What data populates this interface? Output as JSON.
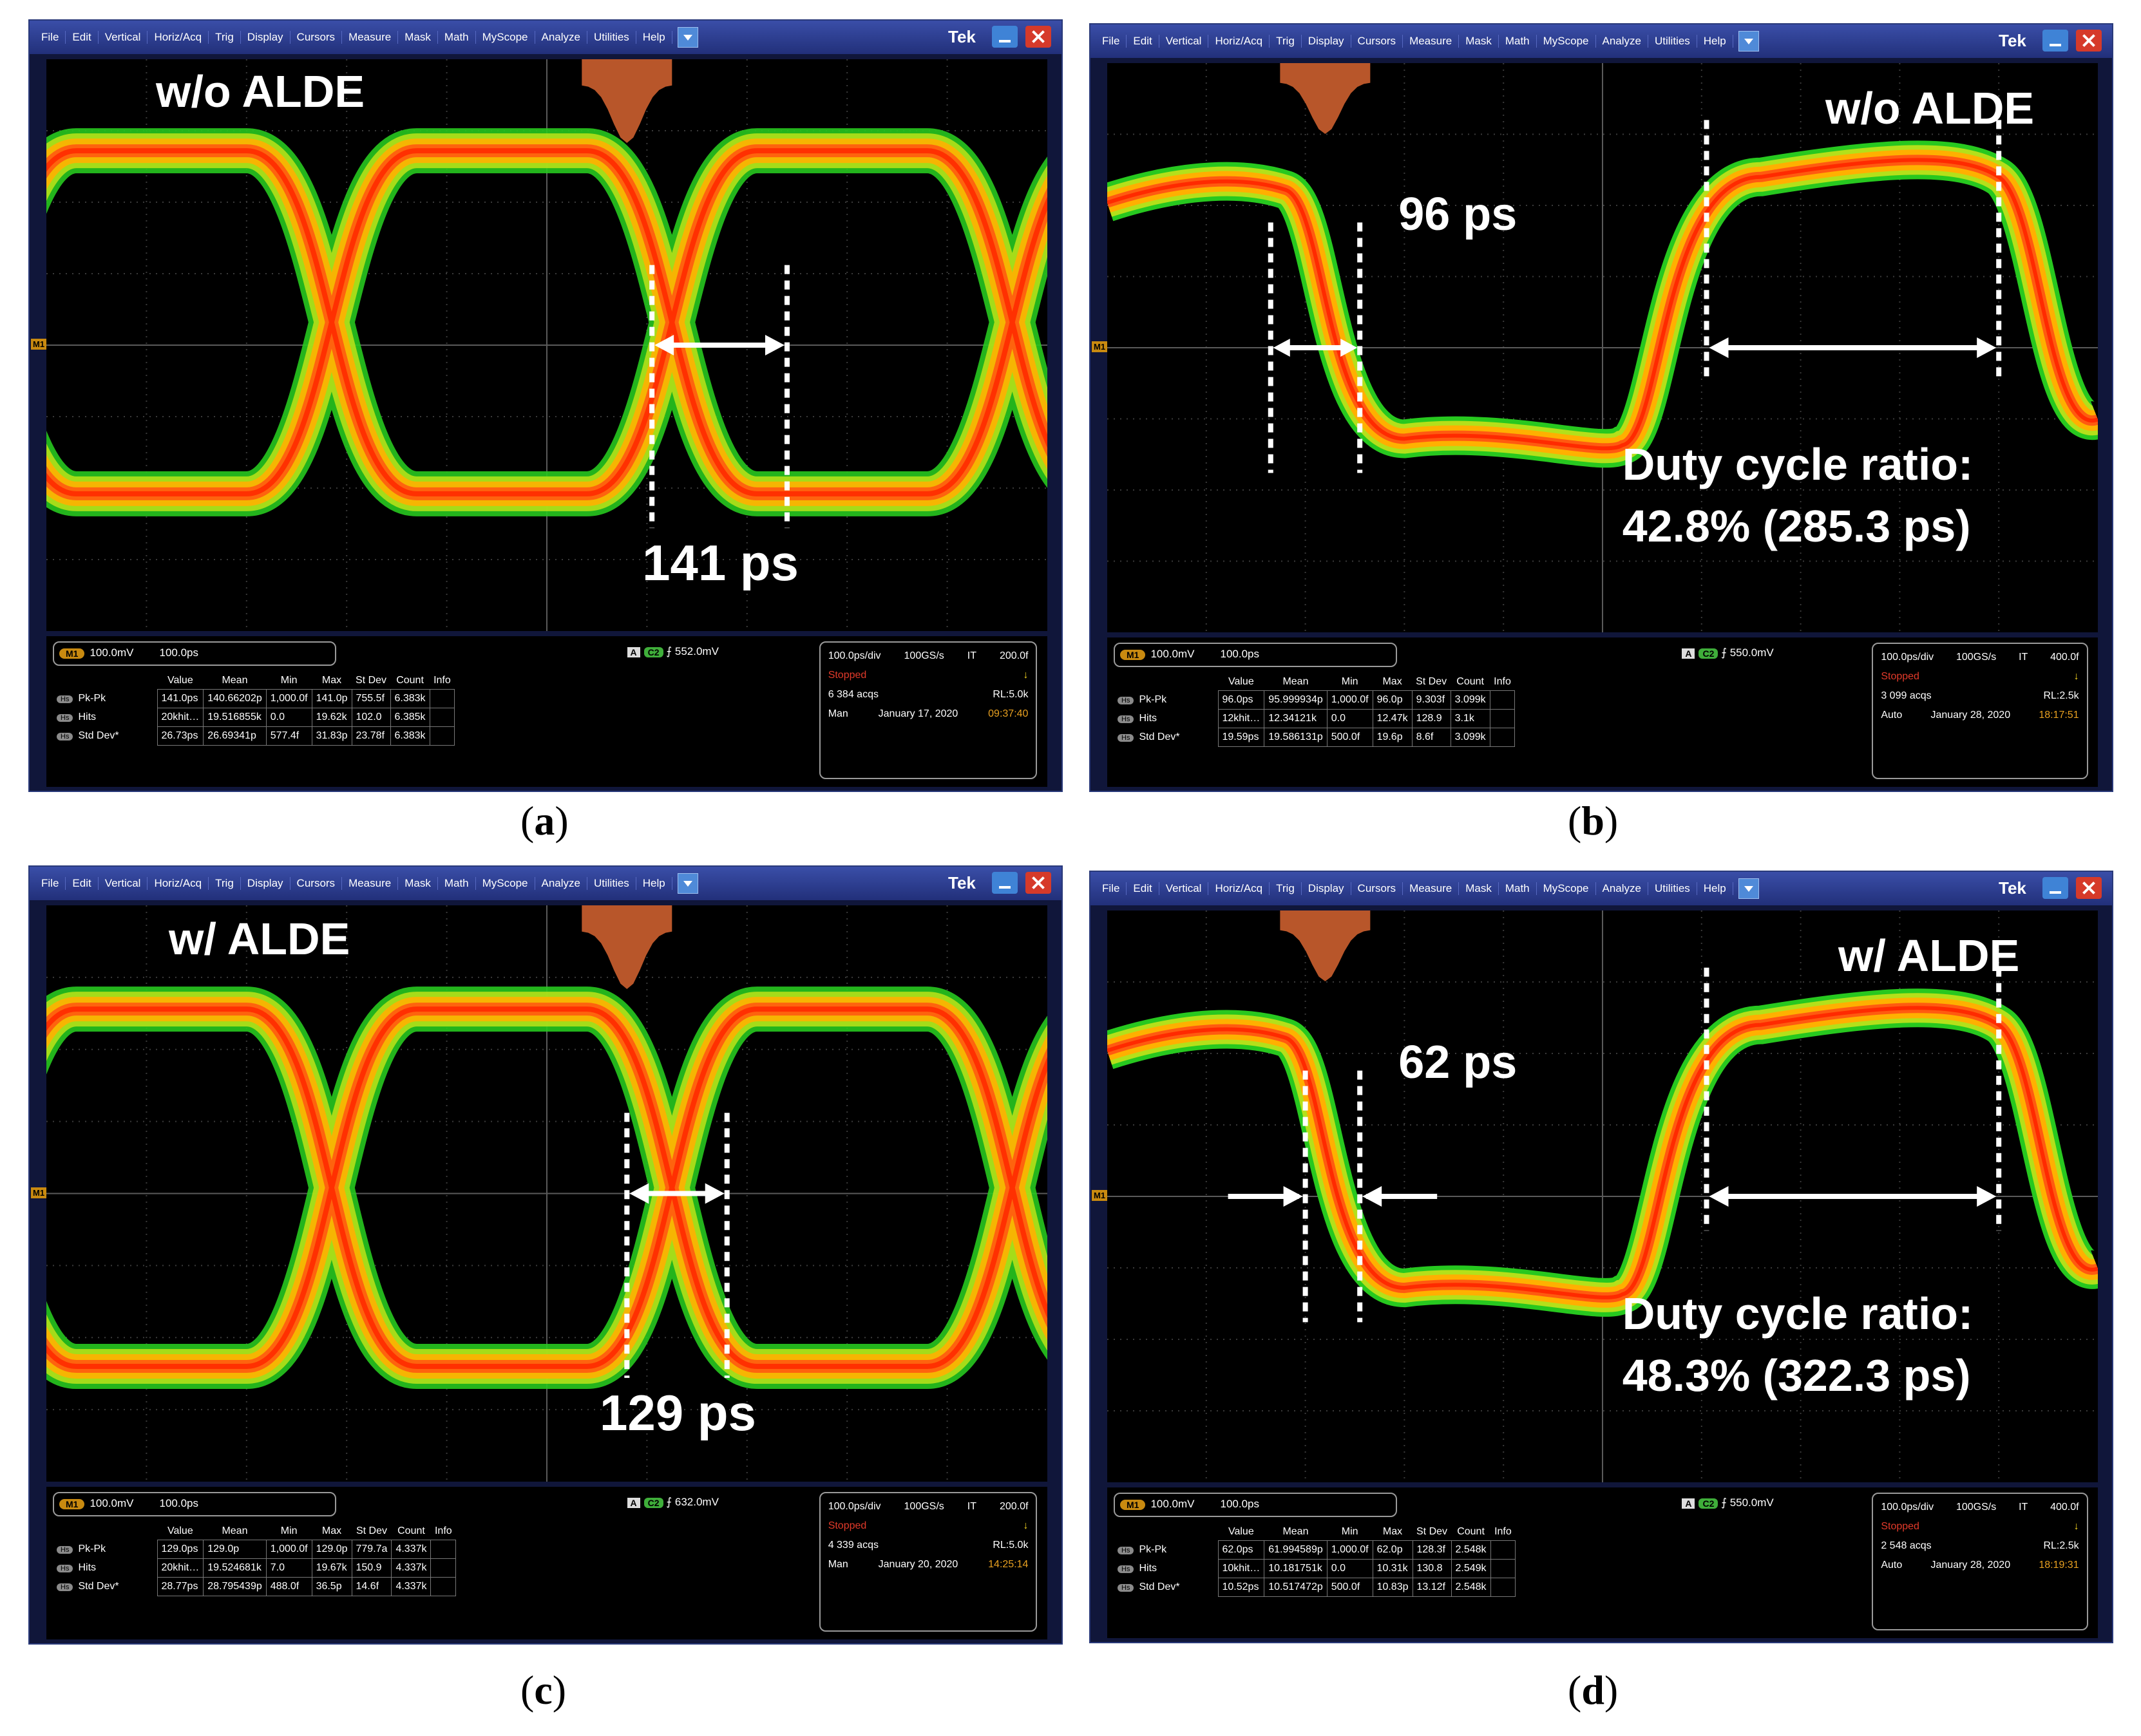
{
  "menu_items": [
    "File",
    "Edit",
    "Vertical",
    "Horiz/Acq",
    "Trig",
    "Display",
    "Cursors",
    "Measure",
    "Mask",
    "Math",
    "MyScope",
    "Analyze",
    "Utilities",
    "Help"
  ],
  "brand": "Tek",
  "trace_marker": "M1",
  "colors": {
    "trace_hot": "#ff3a10",
    "trace_mid": "#ffa500",
    "trace_cool": "#33dd33",
    "histogram": "#b8562a",
    "accent_label": "#c98a10"
  },
  "measure_headers": [
    "Value",
    "Mean",
    "Min",
    "Max",
    "St Dev",
    "Count",
    "Info"
  ],
  "row_tag": "Hs",
  "panels": [
    {
      "id": "a",
      "caption_letter": "a",
      "title": "w/o ALDE",
      "annotation": "141 ps",
      "m1_scale": "100.0mV",
      "m1_pos": "100.0ps",
      "trigger_source": "C2",
      "trigger_level": "552.0mV",
      "trigger_tag": "A",
      "timebase": "100.0ps/div",
      "rate": "100GS/s",
      "mode": "IT",
      "rate_extra": "200.0f",
      "state": "Stopped",
      "acqs": "6 384 acqs",
      "rl": "RL:5.0k",
      "run_mode": "Man",
      "date": "January 17, 2020",
      "time": "09:37:40",
      "rows": [
        {
          "label": "Pk-Pk",
          "cells": [
            "141.0ps",
            "140.66202p",
            "1,000.0f",
            "141.0p",
            "755.5f",
            "6.383k",
            ""
          ]
        },
        {
          "label": "Hits",
          "cells": [
            "20khit…",
            "19.516855k",
            "0.0",
            "19.62k",
            "102.0",
            "6.385k",
            ""
          ]
        },
        {
          "label": "Std Dev*",
          "cells": [
            "26.73ps",
            "26.69341p",
            "577.4f",
            "31.83p",
            "23.78f",
            "6.383k",
            ""
          ]
        }
      ]
    },
    {
      "id": "b",
      "caption_letter": "b",
      "title": "w/o ALDE",
      "annotation": "96 ps",
      "duty_line1": "Duty cycle ratio:",
      "duty_line2": "42.8% (285.3 ps)",
      "m1_scale": "100.0mV",
      "m1_pos": "100.0ps",
      "trigger_source": "C2",
      "trigger_level": "550.0mV",
      "trigger_tag": "A",
      "timebase": "100.0ps/div",
      "rate": "100GS/s",
      "mode": "IT",
      "rate_extra": "400.0f",
      "state": "Stopped",
      "acqs": "3 099 acqs",
      "rl": "RL:2.5k",
      "run_mode": "Auto",
      "date": "January 28, 2020",
      "time": "18:17:51",
      "rows": [
        {
          "label": "Pk-Pk",
          "cells": [
            "96.0ps",
            "95.999934p",
            "1,000.0f",
            "96.0p",
            "9.303f",
            "3.099k",
            ""
          ]
        },
        {
          "label": "Hits",
          "cells": [
            "12khit…",
            "12.34121k",
            "0.0",
            "12.47k",
            "128.9",
            "3.1k",
            ""
          ]
        },
        {
          "label": "Std Dev*",
          "cells": [
            "19.59ps",
            "19.586131p",
            "500.0f",
            "19.6p",
            "8.6f",
            "3.099k",
            ""
          ]
        }
      ]
    },
    {
      "id": "c",
      "caption_letter": "c",
      "title": "w/ ALDE",
      "annotation": "129 ps",
      "m1_scale": "100.0mV",
      "m1_pos": "100.0ps",
      "trigger_source": "C2",
      "trigger_level": "632.0mV",
      "trigger_tag": "A",
      "timebase": "100.0ps/div",
      "rate": "100GS/s",
      "mode": "IT",
      "rate_extra": "200.0f",
      "state": "Stopped",
      "acqs": "4 339 acqs",
      "rl": "RL:5.0k",
      "run_mode": "Man",
      "date": "January 20, 2020",
      "time": "14:25:14",
      "rows": [
        {
          "label": "Pk-Pk",
          "cells": [
            "129.0ps",
            "129.0p",
            "1,000.0f",
            "129.0p",
            "779.7a",
            "4.337k",
            ""
          ]
        },
        {
          "label": "Hits",
          "cells": [
            "20khit…",
            "19.524681k",
            "7.0",
            "19.67k",
            "150.9",
            "4.337k",
            ""
          ]
        },
        {
          "label": "Std Dev*",
          "cells": [
            "28.77ps",
            "28.795439p",
            "488.0f",
            "36.5p",
            "14.6f",
            "4.337k",
            ""
          ]
        }
      ]
    },
    {
      "id": "d",
      "caption_letter": "d",
      "title": "w/ ALDE",
      "annotation": "62 ps",
      "duty_line1": "Duty cycle ratio:",
      "duty_line2": "48.3% (322.3 ps)",
      "m1_scale": "100.0mV",
      "m1_pos": "100.0ps",
      "trigger_source": "C2",
      "trigger_level": "550.0mV",
      "trigger_tag": "A",
      "timebase": "100.0ps/div",
      "rate": "100GS/s",
      "mode": "IT",
      "rate_extra": "400.0f",
      "state": "Stopped",
      "acqs": "2 548 acqs",
      "rl": "RL:2.5k",
      "run_mode": "Auto",
      "date": "January 28, 2020",
      "time": "18:19:31",
      "rows": [
        {
          "label": "Pk-Pk",
          "cells": [
            "62.0ps",
            "61.994589p",
            "1,000.0f",
            "62.0p",
            "128.3f",
            "2.548k",
            ""
          ]
        },
        {
          "label": "Hits",
          "cells": [
            "10khit…",
            "10.181751k",
            "0.0",
            "10.31k",
            "130.8",
            "2.549k",
            ""
          ]
        },
        {
          "label": "Std Dev*",
          "cells": [
            "10.52ps",
            "10.517472p",
            "500.0f",
            "10.83p",
            "13.12f",
            "2.548k",
            ""
          ]
        }
      ]
    }
  ]
}
